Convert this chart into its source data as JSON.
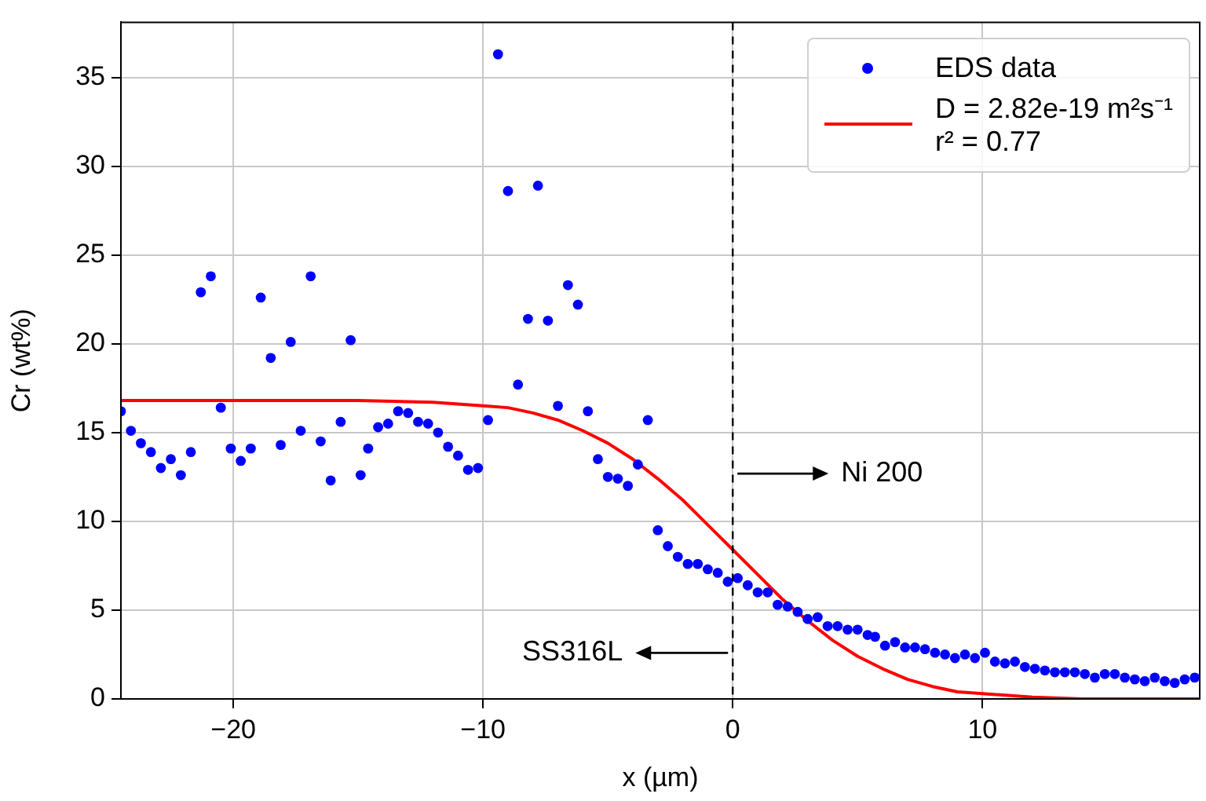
{
  "chart_data": {
    "type": "scatter",
    "xlabel": "x (µm)",
    "ylabel": "Cr (wt%)",
    "xlim": [
      -24.5,
      18.7
    ],
    "xticks": [
      -20,
      -10,
      0,
      10
    ],
    "ylim": [
      0,
      38.1
    ],
    "yticks": [
      0,
      5,
      10,
      15,
      20,
      25,
      30,
      35
    ],
    "grid": true,
    "legend": "top right",
    "marker": "circle",
    "series": [
      {
        "name": "EDS data",
        "color": "#0000ff",
        "x": [
          -24.5,
          -24.1,
          -23.7,
          -23.3,
          -22.9,
          -22.5,
          -22.1,
          -21.7,
          -21.3,
          -20.9,
          -20.5,
          -20.1,
          -19.7,
          -19.3,
          -18.9,
          -18.5,
          -18.1,
          -17.7,
          -17.3,
          -16.9,
          -16.5,
          -16.1,
          -15.7,
          -15.3,
          -14.9,
          -14.6,
          -14.2,
          -13.8,
          -13.4,
          -13.0,
          -12.6,
          -12.2,
          -11.8,
          -11.4,
          -11.0,
          -10.6,
          -10.2,
          -9.8,
          -9.4,
          -9.0,
          -8.6,
          -8.2,
          -7.8,
          -7.4,
          -7.0,
          -6.6,
          -6.2,
          -5.8,
          -5.4,
          -5.0,
          -4.6,
          -4.2,
          -3.8,
          -3.4,
          -3.0,
          -2.6,
          -2.2,
          -1.8,
          -1.4,
          -1.0,
          -0.6,
          -0.2,
          0.2,
          0.6,
          1.0,
          1.4,
          1.8,
          2.2,
          2.6,
          3.0,
          3.4,
          3.8,
          4.2,
          4.6,
          5.0,
          5.4,
          5.7,
          6.1,
          6.5,
          6.9,
          7.3,
          7.7,
          8.1,
          8.5,
          8.9,
          9.3,
          9.7,
          10.1,
          10.5,
          10.9,
          11.3,
          11.7,
          12.1,
          12.5,
          12.9,
          13.3,
          13.7,
          14.1,
          14.5,
          14.9,
          15.3,
          15.7,
          16.1,
          16.5,
          16.9,
          17.3,
          17.7,
          18.1,
          18.5
        ],
        "values": [
          16.2,
          15.1,
          14.4,
          13.9,
          13.0,
          13.5,
          12.6,
          13.9,
          22.9,
          23.8,
          16.4,
          14.1,
          13.4,
          14.1,
          22.6,
          19.2,
          14.3,
          20.1,
          15.1,
          23.8,
          14.5,
          12.3,
          15.6,
          20.2,
          12.6,
          14.1,
          15.3,
          15.5,
          16.2,
          16.1,
          15.6,
          15.5,
          15.0,
          14.2,
          13.7,
          12.9,
          13.0,
          15.7,
          36.3,
          28.6,
          17.7,
          21.4,
          28.9,
          21.3,
          16.5,
          23.3,
          22.2,
          16.2,
          13.5,
          12.5,
          12.4,
          12.0,
          13.2,
          15.7,
          9.5,
          8.6,
          8.0,
          7.6,
          7.6,
          7.3,
          7.1,
          6.6,
          6.8,
          6.4,
          6.0,
          6.0,
          5.3,
          5.2,
          4.9,
          4.5,
          4.6,
          4.1,
          4.1,
          3.9,
          3.9,
          3.6,
          3.5,
          3.0,
          3.2,
          2.9,
          2.9,
          2.8,
          2.6,
          2.5,
          2.3,
          2.5,
          2.3,
          2.6,
          2.1,
          2.0,
          2.1,
          1.8,
          1.7,
          1.6,
          1.5,
          1.5,
          1.5,
          1.4,
          1.2,
          1.4,
          1.4,
          1.2,
          1.1,
          1.0,
          1.2,
          1.0,
          0.9,
          1.1,
          1.2
        ]
      },
      {
        "name": "D = 2.82e-19 m²s⁻¹\nr² = 0.77",
        "type": "line",
        "color": "#ff0000",
        "marker": "none",
        "line_style": "solid",
        "x": [
          -24.5,
          -20,
          -15,
          -12,
          -10,
          -9,
          -8,
          -7,
          -6,
          -5,
          -4,
          -3,
          -2,
          -1,
          0,
          1,
          2,
          3,
          4,
          5,
          6,
          7,
          8,
          9,
          10,
          12,
          14,
          16,
          18.7
        ],
        "values": [
          16.8,
          16.8,
          16.8,
          16.7,
          16.5,
          16.4,
          16.1,
          15.7,
          15.1,
          14.4,
          13.5,
          12.4,
          11.2,
          9.8,
          8.4,
          7.0,
          5.6,
          4.4,
          3.3,
          2.4,
          1.7,
          1.1,
          0.7,
          0.4,
          0.3,
          0.1,
          0.0,
          0.0,
          0.0
        ]
      }
    ],
    "ref_lines": [
      {
        "axis": "x",
        "value": 0,
        "color": "#000000",
        "line_style": "dashed"
      }
    ],
    "annotations": [
      "Ni 200",
      "SS316L"
    ]
  }
}
